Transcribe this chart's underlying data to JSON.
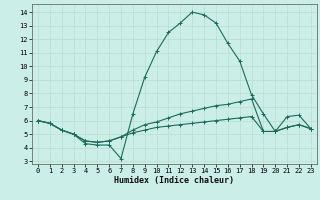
{
  "title": "",
  "xlabel": "Humidex (Indice chaleur)",
  "xlim": [
    -0.5,
    23.5
  ],
  "ylim": [
    2.8,
    14.6
  ],
  "yticks": [
    3,
    4,
    5,
    6,
    7,
    8,
    9,
    10,
    11,
    12,
    13,
    14
  ],
  "xticks": [
    0,
    1,
    2,
    3,
    4,
    5,
    6,
    7,
    8,
    9,
    10,
    11,
    12,
    13,
    14,
    15,
    16,
    17,
    18,
    19,
    20,
    21,
    22,
    23
  ],
  "background_color": "#cceee8",
  "grid_color": "#bbddcc",
  "line_color": "#1a6b5a",
  "lines": [
    {
      "x": [
        0,
        1,
        2,
        3,
        4,
        5,
        6,
        7,
        8,
        9,
        10,
        11,
        12,
        13,
        14,
        15,
        16,
        17,
        18,
        19,
        20,
        21,
        22,
        23
      ],
      "y": [
        6.0,
        5.8,
        5.3,
        5.0,
        4.3,
        4.2,
        4.2,
        3.2,
        6.5,
        9.2,
        11.1,
        12.5,
        13.2,
        14.0,
        13.8,
        13.2,
        11.7,
        10.4,
        7.9,
        6.5,
        5.2,
        6.3,
        6.4,
        5.4
      ]
    },
    {
      "x": [
        0,
        1,
        2,
        3,
        4,
        5,
        6,
        7,
        8,
        9,
        10,
        11,
        12,
        13,
        14,
        15,
        16,
        17,
        18,
        19,
        20,
        21,
        22,
        23
      ],
      "y": [
        6.0,
        5.8,
        5.3,
        5.0,
        4.5,
        4.4,
        4.5,
        4.8,
        5.3,
        5.7,
        5.9,
        6.2,
        6.5,
        6.7,
        6.9,
        7.1,
        7.2,
        7.4,
        7.6,
        5.2,
        5.2,
        5.5,
        5.7,
        5.4
      ]
    },
    {
      "x": [
        0,
        1,
        2,
        3,
        4,
        5,
        6,
        7,
        8,
        9,
        10,
        11,
        12,
        13,
        14,
        15,
        16,
        17,
        18,
        19,
        20,
        21,
        22,
        23
      ],
      "y": [
        6.0,
        5.8,
        5.3,
        5.0,
        4.5,
        4.4,
        4.5,
        4.8,
        5.1,
        5.3,
        5.5,
        5.6,
        5.7,
        5.8,
        5.9,
        6.0,
        6.1,
        6.2,
        6.3,
        5.2,
        5.2,
        5.5,
        5.7,
        5.4
      ]
    }
  ]
}
